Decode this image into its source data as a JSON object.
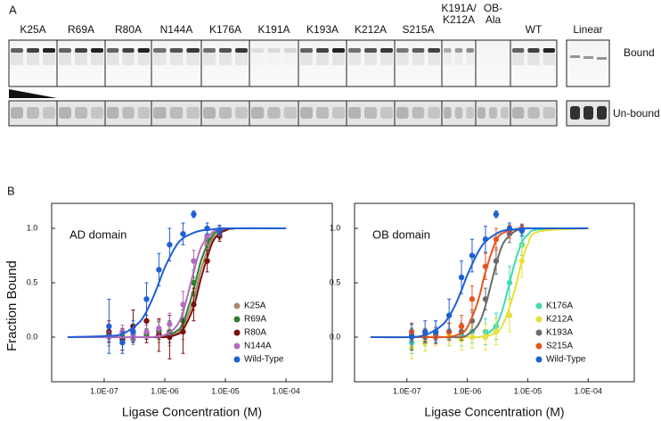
{
  "panel_a": {
    "label": "A",
    "lanes": [
      [
        "K25A"
      ],
      [
        "R69A"
      ],
      [
        "R80A"
      ],
      [
        "N144A"
      ],
      [
        "K176A"
      ],
      [
        "K191A"
      ],
      [
        "K193A"
      ],
      [
        "K212A"
      ],
      [
        "S215A"
      ],
      [
        "K191A/",
        "K212A"
      ],
      [
        "OB-",
        "Ala"
      ],
      [
        "WT"
      ]
    ],
    "linear_label": "Linear",
    "row_labels": [
      "Bound",
      "Un-bound"
    ]
  },
  "panel_b": {
    "label": "B",
    "y_label": "Fraction Bound"
  },
  "chart_data": [
    {
      "type": "scatter",
      "annotation": "AD domain",
      "x_label": "Ligase Concentration (M)",
      "log_x": true,
      "legend": "lower right",
      "xlim": [
        1.36e-08,
        0.00058
      ],
      "ylim": [
        -0.41,
        1.23
      ],
      "xticks": [
        {
          "value": 1e-07,
          "label": "1.0E-07"
        },
        {
          "value": 1e-06,
          "label": "1.0E-06"
        },
        {
          "value": 1e-05,
          "label": "1.0E-05"
        },
        {
          "value": 0.0001,
          "label": "1.0E-04"
        }
      ],
      "yticks": [
        {
          "value": 0,
          "label": "0.0"
        },
        {
          "value": 0.5,
          "label": "0.5"
        },
        {
          "value": 1,
          "label": "1.0"
        }
      ],
      "point_x": [
        1.2e-07,
        2e-07,
        3e-07,
        5e-07,
        8e-07,
        1.2e-06,
        2e-06,
        3e-06,
        5e-06,
        8e-06
      ],
      "fit_x": [
        2.5e-08,
        1e-07,
        2e-07,
        4e-07,
        6e-07,
        8e-07,
        1e-06,
        1.5e-06,
        2e-06,
        3e-06,
        4e-06,
        6e-06,
        8e-06,
        1e-05,
        1.5e-05,
        0.0001
      ],
      "series": [
        {
          "name": "K25A",
          "color": "#a98a6a",
          "values": [
            0,
            0.03,
            -0.02,
            0.01,
            0.05,
            0.02,
            0.1,
            0.4,
            0.85,
            0.95
          ],
          "errors": [
            0.08,
            0.05,
            0.05,
            0.06,
            0.1,
            0.1,
            0.12,
            0.15,
            0.1,
            0.05
          ],
          "fit_values": [
            0,
            0,
            0,
            0,
            0,
            0,
            0.01,
            0.03,
            0.1,
            0.35,
            0.63,
            0.9,
            0.96,
            0.99,
            1,
            1
          ]
        },
        {
          "name": "R69A",
          "color": "#2e7d32",
          "values": [
            0.02,
            0,
            0.05,
            0.03,
            0.06,
            0.05,
            0.15,
            0.5,
            0.9,
            0.97
          ],
          "errors": [
            0.06,
            0.05,
            0.06,
            0.05,
            0.08,
            0.1,
            0.1,
            0.12,
            0.08,
            0.05
          ],
          "fit_values": [
            0,
            0,
            0,
            0,
            0,
            0,
            0.01,
            0.05,
            0.13,
            0.44,
            0.71,
            0.93,
            0.98,
            0.99,
            1,
            1
          ]
        },
        {
          "name": "R80A",
          "color": "#7b1010",
          "values": [
            0.05,
            -0.02,
            0.1,
            0.15,
            0.02,
            0,
            0.05,
            0.3,
            0.7,
            0.93
          ],
          "errors": [
            0.1,
            0.1,
            0.15,
            0.2,
            0.15,
            0.2,
            0.2,
            0.15,
            0.1,
            0.05
          ],
          "fit_values": [
            0,
            0,
            0,
            0,
            0,
            0,
            0,
            0.02,
            0.07,
            0.28,
            0.55,
            0.86,
            0.95,
            0.98,
            1,
            1
          ]
        },
        {
          "name": "N144A",
          "color": "#b36bc0",
          "values": [
            0,
            0.05,
            0.02,
            0.05,
            0.08,
            0.12,
            0.3,
            0.7,
            0.93,
            0.98
          ],
          "errors": [
            0.05,
            0.06,
            0.05,
            0.06,
            0.08,
            0.1,
            0.12,
            0.1,
            0.08,
            0.04
          ],
          "fit_values": [
            0,
            0,
            0,
            0,
            0,
            0.01,
            0.02,
            0.09,
            0.23,
            0.6,
            0.83,
            0.96,
            0.99,
            1,
            1,
            1
          ]
        },
        {
          "name": "Wild-Type",
          "color": "#1f5fd6",
          "values": [
            0.1,
            -0.05,
            0.05,
            0.35,
            0.62,
            0.85,
            0.95,
            1.13,
            1,
            0.98
          ],
          "errors": [
            0.25,
            0.1,
            0.1,
            0.15,
            0.15,
            0.15,
            0.1,
            0.03,
            0.05,
            0.05
          ],
          "fit_values": [
            0,
            0.01,
            0.03,
            0.15,
            0.33,
            0.5,
            0.64,
            0.83,
            0.91,
            0.96,
            0.98,
            0.99,
            1,
            1,
            1,
            1
          ]
        }
      ]
    },
    {
      "type": "scatter",
      "annotation": "OB domain",
      "x_label": "Ligase Concentration (M)",
      "log_x": true,
      "legend": "lower right",
      "xlim": [
        1.36e-08,
        0.00058
      ],
      "ylim": [
        -0.41,
        1.23
      ],
      "xticks": [
        {
          "value": 1e-07,
          "label": "1.0E-07"
        },
        {
          "value": 1e-06,
          "label": "1.0E-06"
        },
        {
          "value": 1e-05,
          "label": "1.0E-05"
        },
        {
          "value": 0.0001,
          "label": "1.0E-04"
        }
      ],
      "yticks": [
        {
          "value": 0,
          "label": "0.0"
        },
        {
          "value": 0.5,
          "label": "0.5"
        },
        {
          "value": 1,
          "label": "1.0"
        }
      ],
      "point_x": [
        1.2e-07,
        2e-07,
        3e-07,
        5e-07,
        8e-07,
        1.2e-06,
        2e-06,
        3e-06,
        5e-06,
        8e-06
      ],
      "fit_x": [
        2.5e-08,
        1e-07,
        2e-07,
        4e-07,
        6e-07,
        8e-07,
        1e-06,
        1.5e-06,
        2e-06,
        3e-06,
        4e-06,
        6e-06,
        8e-06,
        1e-05,
        1.5e-05,
        0.0001
      ],
      "series": [
        {
          "name": "K176A",
          "color": "#3ddcb0",
          "values": [
            -0.05,
            0,
            0.05,
            0,
            0.02,
            0.05,
            0.05,
            0.1,
            0.5,
            0.85
          ],
          "errors": [
            0.1,
            0.08,
            0.1,
            0.08,
            0.1,
            0.1,
            0.12,
            0.12,
            0.15,
            0.1
          ],
          "fit_values": [
            0,
            0,
            0,
            0,
            0,
            0,
            0,
            0,
            0.02,
            0.11,
            0.29,
            0.67,
            0.87,
            0.94,
            0.99,
            1
          ]
        },
        {
          "name": "K212A",
          "color": "#e8e03a",
          "values": [
            -0.1,
            -0.05,
            0,
            0.02,
            -0.02,
            0,
            0,
            0.05,
            0.2,
            0.7
          ],
          "errors": [
            0.1,
            0.08,
            0.08,
            0.1,
            0.1,
            0.1,
            0.12,
            0.12,
            0.15,
            0.15
          ],
          "fit_values": [
            0,
            0,
            0,
            0,
            0,
            0,
            0,
            0,
            0.01,
            0.04,
            0.13,
            0.42,
            0.7,
            0.85,
            0.97,
            1
          ]
        },
        {
          "name": "K193A",
          "color": "#6b6b6b",
          "values": [
            0.02,
            0,
            0.03,
            0.05,
            0.05,
            0.15,
            0.35,
            0.7,
            0.95,
            0.98
          ],
          "errors": [
            0.06,
            0.05,
            0.06,
            0.08,
            0.08,
            0.1,
            0.1,
            0.12,
            0.08,
            0.05
          ],
          "fit_values": [
            0,
            0,
            0,
            0,
            0,
            0,
            0.02,
            0.11,
            0.29,
            0.67,
            0.87,
            0.97,
            0.99,
            1,
            1,
            1
          ]
        },
        {
          "name": "S215A",
          "color": "#e8551e",
          "values": [
            0.05,
            0.02,
            0,
            0.05,
            0.1,
            0.35,
            0.65,
            0.9,
            0.97,
            1
          ],
          "errors": [
            0.08,
            0.06,
            0.06,
            0.08,
            0.1,
            0.12,
            0.12,
            0.1,
            0.06,
            0.04
          ],
          "fit_values": [
            0,
            0,
            0,
            0,
            0.01,
            0.04,
            0.09,
            0.33,
            0.6,
            0.89,
            0.96,
            0.99,
            1,
            1,
            1,
            1
          ]
        },
        {
          "name": "Wild-Type",
          "color": "#1f5fd6",
          "values": [
            0,
            0.05,
            0.05,
            0.2,
            0.55,
            0.75,
            0.9,
            1.13,
            1,
            0.98
          ],
          "errors": [
            0.12,
            0.1,
            0.1,
            0.15,
            0.15,
            0.15,
            0.12,
            0.03,
            0.05,
            0.05
          ],
          "fit_values": [
            0,
            0,
            0.02,
            0.12,
            0.27,
            0.43,
            0.57,
            0.78,
            0.88,
            0.95,
            0.98,
            0.99,
            1,
            1,
            1,
            1
          ]
        }
      ]
    }
  ]
}
